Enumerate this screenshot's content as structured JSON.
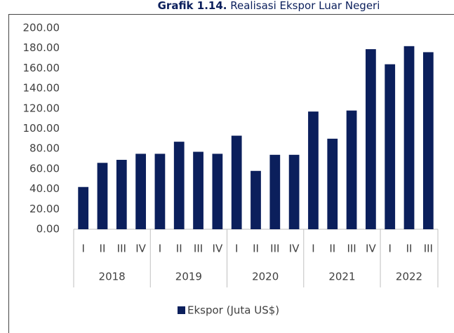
{
  "chart_data": {
    "type": "bar",
    "figure_number": "Grafik 1.14.",
    "title": "Realisasi Ekspor Luar Negeri",
    "categories": [
      "I",
      "II",
      "III",
      "IV",
      "I",
      "II",
      "III",
      "IV",
      "I",
      "II",
      "III",
      "IV",
      "I",
      "II",
      "III",
      "IV",
      "I",
      "II",
      "III"
    ],
    "groups": [
      {
        "name": "2018",
        "span": 4
      },
      {
        "name": "2019",
        "span": 4
      },
      {
        "name": "2020",
        "span": 4
      },
      {
        "name": "2021",
        "span": 4
      },
      {
        "name": "2022",
        "span": 3
      }
    ],
    "series": [
      {
        "name": "Ekspor (Juta US$)",
        "color": "#0b1f5c",
        "values": [
          42,
          66,
          69,
          75,
          75,
          87,
          77,
          75,
          93,
          58,
          74,
          74,
          117,
          90,
          118,
          179,
          164,
          182,
          176
        ]
      }
    ],
    "ylim": [
      0,
      200
    ],
    "yticks": [
      {
        "value": 0,
        "label": "0.00"
      },
      {
        "value": 20,
        "label": "20.00"
      },
      {
        "value": 40,
        "label": "40.00"
      },
      {
        "value": 60,
        "label": "60.00"
      },
      {
        "value": 80,
        "label": "80.00"
      },
      {
        "value": 100,
        "label": "100.00"
      },
      {
        "value": 120,
        "label": "120.00"
      },
      {
        "value": 140,
        "label": "140.00"
      },
      {
        "value": 160,
        "label": "160.00"
      },
      {
        "value": 180,
        "label": "180.00"
      },
      {
        "value": 200,
        "label": "200.00"
      }
    ],
    "grid": false,
    "legend": "bottom"
  }
}
